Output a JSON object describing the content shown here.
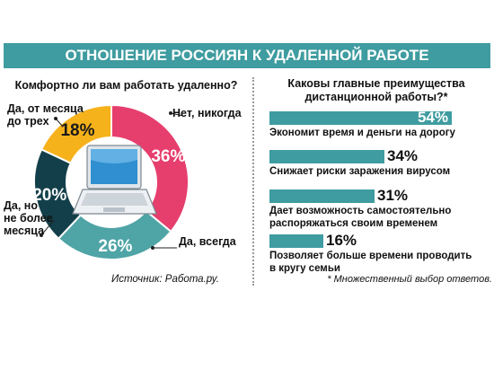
{
  "title": "ОТНОШЕНИЕ РОССИЯН К УДАЛЕННОЙ РАБОТЕ",
  "left_question": "Комфортно ли вам работать удаленно?",
  "source": "Источник: Работа.ру.",
  "right_question_line1": "Каковы главные преимущества",
  "right_question_line2": "дистанционной работы?*",
  "footnote": "* Множественный выбор ответов.",
  "colors": {
    "banner": "#3f9ca0",
    "pink": "#e63e6d",
    "teal": "#4fa4a6",
    "dark": "#133f4a",
    "yellow": "#f6b21b",
    "bar": "#3f9ca0"
  },
  "icons": [
    "laptop-icon"
  ],
  "chart_data": [
    {
      "type": "pie",
      "title": "Комфортно ли вам работать удаленно?",
      "slices": [
        {
          "label": "Нет, никогда",
          "value": 36,
          "display": "36%",
          "color": "#e63e6d"
        },
        {
          "label": "Да, всегда",
          "value": 26,
          "display": "26%",
          "color": "#4fa4a6"
        },
        {
          "label": "Да, но не более месяца",
          "value": 20,
          "display": "20%",
          "color": "#133f4a"
        },
        {
          "label": "Да, от месяца до трех",
          "value": 18,
          "display": "18%",
          "color": "#f6b21b"
        }
      ],
      "label_lines": {
        "never": [
          "Нет, никогда"
        ],
        "always": [
          "Да, всегда"
        ],
        "month": [
          "Да, но",
          "не более",
          "месяца"
        ],
        "three": [
          "Да, от месяца",
          "до трех"
        ]
      }
    },
    {
      "type": "bar",
      "title": "Каковы главные преимущества дистанционной работы?*",
      "xlim": [
        0,
        54
      ],
      "bars": [
        {
          "value": 54,
          "display": "54%",
          "label_lines": [
            "Экономит время и деньги на дорогу"
          ]
        },
        {
          "value": 34,
          "display": "34%",
          "label_lines": [
            "Снижает риски заражения вирусом"
          ]
        },
        {
          "value": 31,
          "display": "31%",
          "label_lines": [
            "Дает возможность самостоятельно",
            "распоряжаться своим временем"
          ]
        },
        {
          "value": 16,
          "display": "16%",
          "label_lines": [
            "Позволяет больше времени проводить",
            "в кругу семьи"
          ]
        }
      ]
    }
  ]
}
